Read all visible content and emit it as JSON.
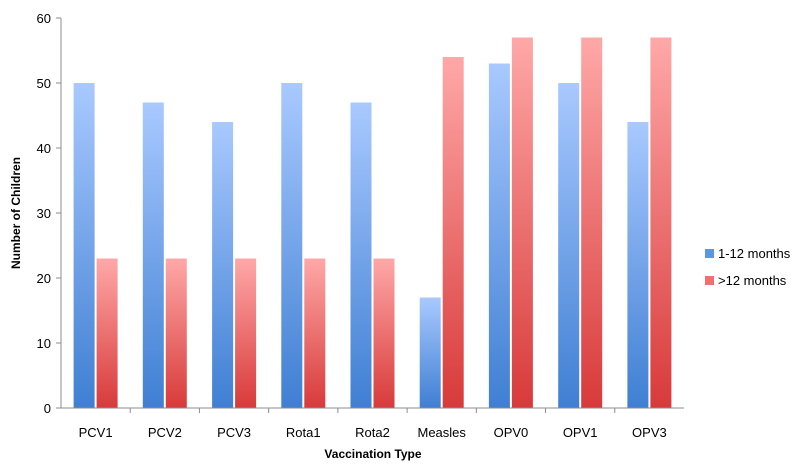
{
  "chart_data": {
    "type": "bar",
    "categories": [
      "PCV1",
      "PCV2",
      "PCV3",
      "Rota1",
      "Rota2",
      "Measles",
      "OPV0",
      "OPV1",
      "OPV3"
    ],
    "series": [
      {
        "name": "1-12 months",
        "values": [
          50,
          47,
          44,
          50,
          47,
          17,
          53,
          50,
          44
        ],
        "color_top": "#a9c9ff",
        "color_bottom": "#3f7fd3"
      },
      {
        "name": ">12 months",
        "values": [
          23,
          23,
          23,
          23,
          23,
          54,
          57,
          57,
          57
        ],
        "color_top": "#ffa8a8",
        "color_bottom": "#d83a3a"
      }
    ],
    "xlabel": "Vaccination Type",
    "ylabel": "Number of Children",
    "ylim": [
      0,
      60
    ],
    "yticks": [
      0,
      10,
      20,
      30,
      40,
      50,
      60
    ],
    "grid": false,
    "legend_position": "right"
  }
}
